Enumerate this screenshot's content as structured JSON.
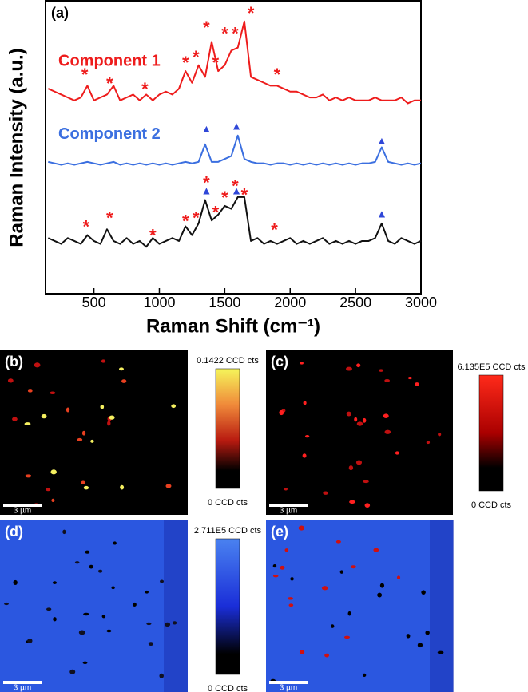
{
  "chart_data": {
    "type": "line",
    "panel_label": "(a)",
    "ylabel": "Raman Intensity (a.u.)",
    "xlabel": "Raman Shift (cm⁻¹)",
    "x": [
      150,
      200,
      250,
      300,
      350,
      400,
      450,
      500,
      550,
      600,
      650,
      700,
      750,
      800,
      850,
      900,
      950,
      1000,
      1050,
      1100,
      1150,
      1200,
      1250,
      1300,
      1350,
      1400,
      1450,
      1500,
      1550,
      1600,
      1650,
      1700,
      1750,
      1800,
      1850,
      1900,
      1950,
      2000,
      2050,
      2100,
      2150,
      2200,
      2250,
      2300,
      2350,
      2400,
      2450,
      2500,
      2550,
      2600,
      2650,
      2700,
      2750,
      2800,
      2850,
      2900,
      2950,
      3000
    ],
    "series": [
      {
        "name": "Component 1",
        "color": "#ee1c1c",
        "values": [
          70,
          69,
          68,
          67,
          66,
          67,
          71,
          66,
          67,
          68,
          71,
          66,
          67,
          68,
          66,
          68,
          66,
          68,
          69,
          68,
          70,
          76,
          72,
          78,
          74,
          86,
          76,
          78,
          83,
          84,
          93,
          74,
          73,
          72,
          71,
          71,
          70,
          69,
          69,
          68,
          67,
          67,
          68,
          66,
          67,
          66,
          67,
          66,
          66,
          66,
          67,
          66,
          66,
          66,
          67,
          65,
          66,
          66
        ]
      },
      {
        "name": "Component 2",
        "color": "#3b6fe0",
        "values": [
          45,
          44.5,
          44,
          44.5,
          44,
          44.5,
          45,
          44.5,
          44,
          44.5,
          45,
          44,
          44.5,
          44,
          44.5,
          44,
          44.5,
          44,
          44.5,
          44,
          44.5,
          45,
          44.5,
          45,
          51,
          45,
          45,
          46,
          47,
          54,
          46,
          45,
          44.5,
          44.5,
          44,
          44.5,
          44.5,
          44,
          44.5,
          44,
          44.5,
          44,
          44.5,
          44,
          44.5,
          44,
          44.5,
          44,
          44.5,
          44.5,
          45,
          50,
          45,
          44.5,
          44,
          44.5,
          44,
          44.5
        ]
      },
      {
        "color": "#111111",
        "values": [
          19,
          18,
          17,
          19,
          18,
          17,
          20,
          18,
          17,
          22,
          18,
          17,
          19,
          17,
          18,
          16,
          19,
          17,
          18,
          19,
          18,
          23,
          20,
          24,
          32,
          25,
          27,
          30,
          29,
          33,
          33,
          18,
          19,
          17,
          18,
          17,
          18,
          19,
          17,
          18,
          17,
          18,
          19,
          17,
          18,
          17,
          18,
          17,
          18,
          18,
          19,
          24,
          18,
          17,
          19,
          18,
          17,
          18
        ]
      }
    ],
    "annotations": [
      {
        "text": "*",
        "x": 430,
        "y": 76,
        "color": "#ee1c1c"
      },
      {
        "text": "*",
        "x": 620,
        "y": 73,
        "color": "#ee1c1c"
      },
      {
        "text": "*",
        "x": 890,
        "y": 71,
        "color": "#ee1c1c"
      },
      {
        "text": "*",
        "x": 1200,
        "y": 80,
        "color": "#ee1c1c"
      },
      {
        "text": "*",
        "x": 1280,
        "y": 82,
        "color": "#ee1c1c"
      },
      {
        "text": "*",
        "x": 1360,
        "y": 92,
        "color": "#ee1c1c"
      },
      {
        "text": "*",
        "x": 1430,
        "y": 80,
        "color": "#ee1c1c"
      },
      {
        "text": "*",
        "x": 1500,
        "y": 90,
        "color": "#ee1c1c"
      },
      {
        "text": "*",
        "x": 1580,
        "y": 90,
        "color": "#ee1c1c"
      },
      {
        "text": "*",
        "x": 1700,
        "y": 97,
        "color": "#ee1c1c"
      },
      {
        "text": "*",
        "x": 1900,
        "y": 76,
        "color": "#ee1c1c"
      },
      {
        "text": "▲",
        "x": 1360,
        "y": 56,
        "color": "#2f47d8"
      },
      {
        "text": "▲",
        "x": 1590,
        "y": 57,
        "color": "#2f47d8"
      },
      {
        "text": "▲",
        "x": 2700,
        "y": 52,
        "color": "#2f47d8"
      },
      {
        "text": "*",
        "x": 440,
        "y": 24,
        "color": "#ee1c1c"
      },
      {
        "text": "*",
        "x": 620,
        "y": 27,
        "color": "#ee1c1c"
      },
      {
        "text": "*",
        "x": 950,
        "y": 21,
        "color": "#ee1c1c"
      },
      {
        "text": "*",
        "x": 1200,
        "y": 26,
        "color": "#ee1c1c"
      },
      {
        "text": "*",
        "x": 1280,
        "y": 27,
        "color": "#ee1c1c"
      },
      {
        "text": "*",
        "x": 1360,
        "y": 39,
        "color": "#ee1c1c"
      },
      {
        "text": "*",
        "x": 1430,
        "y": 29,
        "color": "#ee1c1c"
      },
      {
        "text": "*",
        "x": 1500,
        "y": 34,
        "color": "#ee1c1c"
      },
      {
        "text": "*",
        "x": 1580,
        "y": 38,
        "color": "#ee1c1c"
      },
      {
        "text": "*",
        "x": 1650,
        "y": 35,
        "color": "#ee1c1c"
      },
      {
        "text": "*",
        "x": 1880,
        "y": 23,
        "color": "#ee1c1c"
      },
      {
        "text": "▲",
        "x": 1360,
        "y": 35,
        "color": "#2f47d8"
      },
      {
        "text": "▲",
        "x": 1590,
        "y": 35,
        "color": "#2f47d8"
      },
      {
        "text": "▲",
        "x": 2700,
        "y": 27,
        "color": "#2f47d8"
      }
    ],
    "xlim": [
      130,
      3000
    ],
    "xticks": [
      500,
      1000,
      1500,
      2000,
      2500,
      3000
    ],
    "ylim": [
      0,
      100
    ]
  },
  "panels": [
    {
      "label": "(b)",
      "scalebar": "3 µm",
      "colorbar_max": "0.1422 CCD cts",
      "colorbar_min": "0 CCD cts"
    },
    {
      "label": "(c)",
      "scalebar": "3 µm",
      "colorbar_max": "6.135E5 CCD cts",
      "colorbar_min": "0 CCD cts"
    },
    {
      "label": "(d)",
      "scalebar": "3 µm",
      "colorbar_max": "2.711E5 CCD cts",
      "colorbar_min": "0 CCD cts"
    },
    {
      "label": "(e)",
      "scalebar": "3 µm"
    }
  ]
}
